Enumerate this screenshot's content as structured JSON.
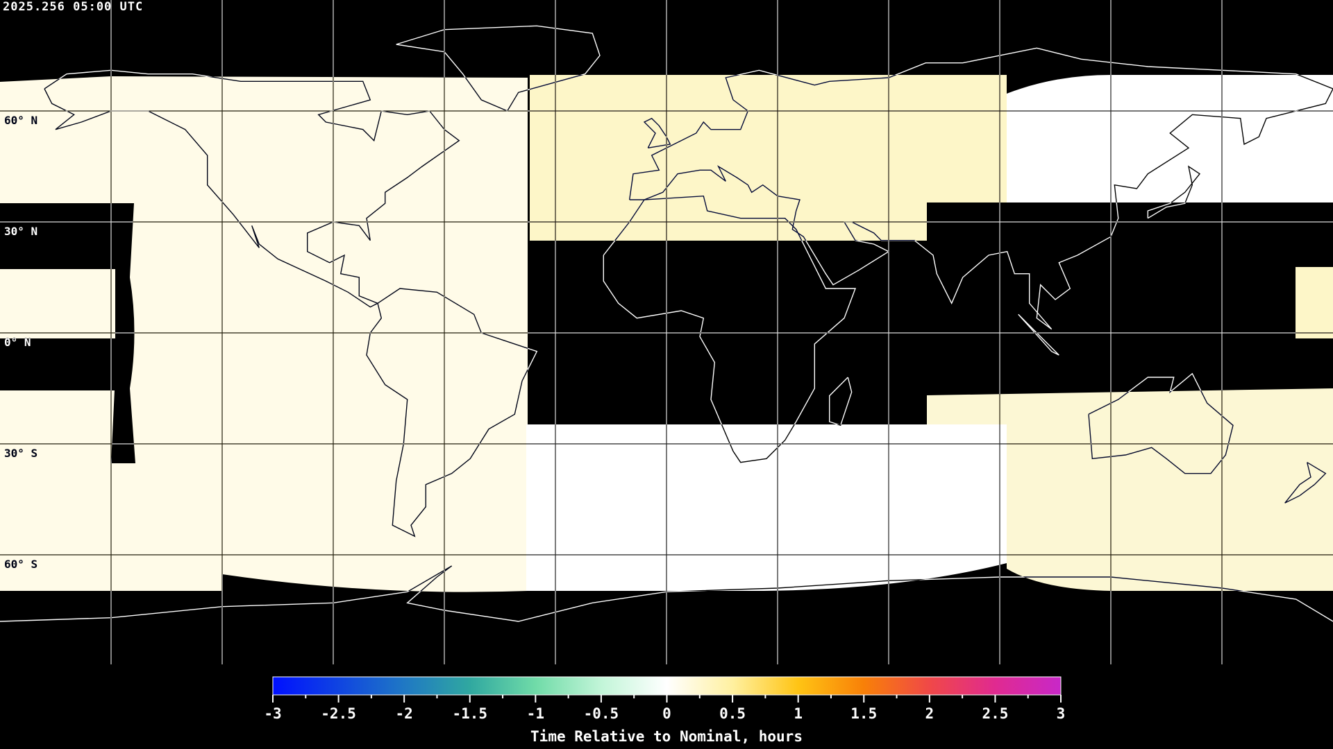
{
  "header": {
    "timestamp": "2025.256 05:00 UTC"
  },
  "map": {
    "projection": "equirectangular",
    "lat_labels": [
      "60° N",
      "30° N",
      "0° N",
      "30° S",
      "60° S"
    ],
    "grid_spacing_deg": 30,
    "colors": {
      "background": "#000000",
      "region_cream": "#fffbe8",
      "region_yellow": "#fdf6c8",
      "region_white": "#ffffff",
      "region_yellow_se": "#fcf7d4"
    }
  },
  "colorbar": {
    "title": "Time Relative to Nominal, hours",
    "min": -3,
    "max": 3,
    "tick_labels": [
      "-3",
      "-2.5",
      "-2",
      "-1.5",
      "-1",
      "-0.5",
      "0",
      "0.5",
      "1",
      "1.5",
      "2",
      "2.5",
      "3"
    ],
    "colormap": [
      {
        "value": -3,
        "color": "#0010ff"
      },
      {
        "value": -2,
        "color": "#1f78c4"
      },
      {
        "value": -1.5,
        "color": "#30a8a0"
      },
      {
        "value": -1,
        "color": "#70dba8"
      },
      {
        "value": -0.5,
        "color": "#c2f5d8"
      },
      {
        "value": 0,
        "color": "#ffffff"
      },
      {
        "value": 0.5,
        "color": "#fff0a0"
      },
      {
        "value": 1,
        "color": "#ffc414"
      },
      {
        "value": 1.5,
        "color": "#f88008"
      },
      {
        "value": 2,
        "color": "#f04848"
      },
      {
        "value": 2.5,
        "color": "#e02a90"
      },
      {
        "value": 3,
        "color": "#c828c8"
      }
    ]
  }
}
